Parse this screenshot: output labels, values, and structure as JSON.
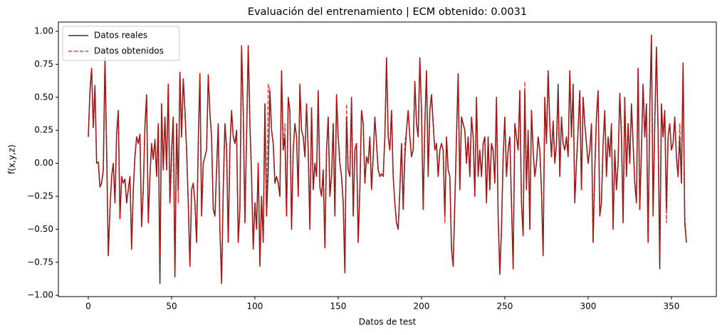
{
  "chart_data": {
    "type": "line",
    "title": "Evaluación del entrenamiento | ECM obtenido: 0.0031",
    "x_label": "Datos de test",
    "y_label": "f(x,y,z)",
    "legend_position": "upper left",
    "x": [
      0,
      1,
      2,
      3,
      4,
      5,
      6,
      7,
      8,
      9,
      10,
      11,
      12,
      13,
      14,
      15,
      16,
      17,
      18,
      19,
      20,
      21,
      22,
      23,
      24,
      25,
      26,
      27,
      28,
      29,
      30,
      31,
      32,
      33,
      34,
      35,
      36,
      37,
      38,
      39,
      40,
      41,
      42,
      43,
      44,
      45,
      46,
      47,
      48,
      49,
      50,
      51,
      52,
      53,
      54,
      55,
      56,
      57,
      58,
      59,
      60,
      61,
      62,
      63,
      64,
      65,
      66,
      67,
      68,
      69,
      70,
      71,
      72,
      73,
      74,
      75,
      76,
      77,
      78,
      79,
      80,
      81,
      82,
      83,
      84,
      85,
      86,
      87,
      88,
      89,
      90,
      91,
      92,
      93,
      94,
      95,
      96,
      97,
      98,
      99,
      100,
      101,
      102,
      103,
      104,
      105,
      106,
      107,
      108,
      109,
      110,
      111,
      112,
      113,
      114,
      115,
      116,
      117,
      118,
      119,
      120,
      121,
      122,
      123,
      124,
      125,
      126,
      127,
      128,
      129,
      130,
      131,
      132,
      133,
      134,
      135,
      136,
      137,
      138,
      139,
      140,
      141,
      142,
      143,
      144,
      145,
      146,
      147,
      148,
      149,
      150,
      151,
      152,
      153,
      154,
      155,
      156,
      157,
      158,
      159,
      160,
      161,
      162,
      163,
      164,
      165,
      166,
      167,
      168,
      169,
      170,
      171,
      172,
      173,
      174,
      175,
      176,
      177,
      178,
      179,
      180,
      181,
      182,
      183,
      184,
      185,
      186,
      187,
      188,
      189,
      190,
      191,
      192,
      193,
      194,
      195,
      196,
      197,
      198,
      199,
      200,
      201,
      202,
      203,
      204,
      205,
      206,
      207,
      208,
      209,
      210,
      211,
      212,
      213,
      214,
      215,
      216,
      217,
      218,
      219,
      220,
      221,
      222,
      223,
      224,
      225,
      226,
      227,
      228,
      229,
      230,
      231,
      232,
      233,
      234,
      235,
      236,
      237,
      238,
      239,
      240,
      241,
      242,
      243,
      244,
      245,
      246,
      247,
      248,
      249,
      250,
      251,
      252,
      253,
      254,
      255,
      256,
      257,
      258,
      259,
      260,
      261,
      262,
      263,
      264,
      265,
      266,
      267,
      268,
      269,
      270,
      271,
      272,
      273,
      274,
      275,
      276,
      277,
      278,
      279,
      280,
      281,
      282,
      283,
      284,
      285,
      286,
      287,
      288,
      289,
      290,
      291,
      292,
      293,
      294,
      295,
      296,
      297,
      298,
      299,
      300,
      301,
      302,
      303,
      304,
      305,
      306,
      307,
      308,
      309,
      310,
      311,
      312,
      313,
      314,
      315,
      316,
      317,
      318,
      319,
      320,
      321,
      322,
      323,
      324,
      325,
      326,
      327,
      328,
      329,
      330,
      331,
      332,
      333,
      334,
      335,
      336,
      337,
      338,
      339,
      340,
      341,
      342,
      343,
      344,
      345,
      346,
      347,
      348,
      349,
      350,
      351,
      352,
      353,
      354,
      355,
      356,
      357,
      358,
      359
    ],
    "series": [
      {
        "name": "Datos reales",
        "color": "#333333",
        "dash": false,
        "values": [
          0.2,
          0.55,
          0.72,
          0.27,
          0.59,
          0.0,
          0.01,
          -0.18,
          -0.15,
          -0.05,
          0.8,
          0.1,
          -0.7,
          -0.35,
          -0.1,
          0.0,
          -0.3,
          0.22,
          0.4,
          -0.42,
          -0.1,
          -0.15,
          -0.12,
          -0.3,
          -0.2,
          -0.1,
          -0.65,
          -0.2,
          0.05,
          0.2,
          0.15,
          0.22,
          -0.48,
          -0.2,
          0.28,
          0.52,
          -0.45,
          -0.1,
          0.15,
          0.03,
          0.18,
          -0.1,
          0.3,
          -0.91,
          0.45,
          -0.05,
          0.35,
          -0.05,
          0.6,
          -0.3,
          0.1,
          0.35,
          -0.86,
          0.3,
          -0.2,
          0.69,
          0.2,
          0.64,
          0.4,
          0.1,
          -0.3,
          -0.78,
          -0.2,
          -0.15,
          -0.3,
          -0.6,
          0.15,
          0.68,
          -0.4,
          0.0,
          0.05,
          0.1,
          0.67,
          0.38,
          0.2,
          -0.35,
          -0.4,
          -0.05,
          0.3,
          -0.5,
          -0.91,
          -0.2,
          0.3,
          0.1,
          -0.6,
          0.12,
          0.4,
          0.2,
          0.15,
          0.25,
          -0.6,
          -0.35,
          0.89,
          0.4,
          -0.45,
          0.2,
          0.89,
          0.3,
          -0.1,
          -0.65,
          -0.3,
          -0.5,
          0.0,
          -0.78,
          -0.25,
          -0.6,
          0.45,
          -0.4,
          -0.05,
          0.55,
          0.25,
          0.15,
          -0.15,
          -0.1,
          -0.15,
          -0.25,
          0.7,
          0.1,
          0.2,
          -0.4,
          0.5,
          0.4,
          -0.5,
          0.1,
          0.3,
          0.2,
          -0.25,
          0.6,
          0.25,
          0.2,
          0.05,
          0.45,
          0.1,
          -0.5,
          0.42,
          -0.2,
          0.0,
          -0.1,
          0.55,
          -0.18,
          -0.25,
          -0.05,
          -0.64,
          0.1,
          0.35,
          -0.25,
          -0.1,
          0.3,
          -0.4,
          0.52,
          0.2,
          0.0,
          -0.1,
          -0.3,
          -0.83,
          0.35,
          -0.05,
          -0.1,
          0.5,
          -0.4,
          0.1,
          0.15,
          -0.6,
          -0.2,
          0.4,
          0.3,
          -0.15,
          0.05,
          0.0,
          0.2,
          -0.2,
          0.05,
          0.35,
          0.15,
          -0.05,
          -0.1,
          -0.08,
          -0.1,
          0.2,
          0.8,
          0.2,
          0.1,
          0.4,
          -0.1,
          -0.3,
          -0.45,
          -0.5,
          -0.2,
          0.15,
          -0.35,
          0.05,
          0.25,
          0.4,
          0.2,
          0.05,
          0.1,
          0.62,
          0.3,
          0.2,
          0.8,
          0.4,
          -0.35,
          0.3,
          0.7,
          -0.1,
          0.4,
          0.52,
          0.3,
          0.1,
          0.15,
          -0.1,
          0.1,
          0.15,
          0.1,
          -0.4,
          0.2,
          -0.05,
          -0.1,
          -0.65,
          -0.78,
          -0.3,
          0.2,
          0.68,
          -0.2,
          0.35,
          0.3,
          0.25,
          0.0,
          0.2,
          -0.1,
          0.35,
          0.2,
          -0.25,
          0.5,
          -0.1,
          0.1,
          -0.1,
          0.15,
          0.2,
          -0.3,
          0.2,
          -0.2,
          0.15,
          0.1,
          -0.15,
          0.5,
          -0.4,
          -0.84,
          -0.5,
          0.05,
          0.35,
          -0.1,
          0.1,
          0.2,
          -0.3,
          -0.8,
          0.3,
          0.2,
          0.1,
          0.55,
          -0.3,
          -0.55,
          0.55,
          -0.2,
          0.25,
          -0.5,
          0.4,
          0.1,
          -0.1,
          0.0,
          0.2,
          0.1,
          -0.2,
          -0.7,
          0.5,
          0.15,
          0.7,
          0.3,
          0.05,
          0.32,
          0.0,
          0.15,
          0.6,
          -0.1,
          0.35,
          0.15,
          0.1,
          0.2,
          0.05,
          0.7,
          0.2,
          0.6,
          -0.3,
          0.0,
          0.25,
          0.55,
          -0.2,
          0.5,
          0.3,
          0.15,
          0.0,
          0.1,
          0.3,
          -0.6,
          -0.05,
          0.35,
          0.55,
          -0.4,
          -0.3,
          0.15,
          0.4,
          -0.1,
          0.2,
          0.05,
          0.3,
          -0.5,
          0.1,
          -0.2,
          0.0,
          0.53,
          0.2,
          -0.45,
          0.5,
          -0.1,
          0.3,
          0.0,
          0.45,
          0.15,
          -0.15,
          -0.3,
          0.72,
          -0.35,
          0.1,
          0.6,
          0.2,
          0.45,
          -0.6,
          0.4,
          0.97,
          -0.4,
          0.3,
          0.88,
          0.25,
          -0.8,
          0.45,
          0.2,
          0.4,
          -0.35,
          0.2,
          0.3,
          0.1,
          0.15,
          0.35,
          0.05,
          -0.1,
          0.2,
          -0.15,
          0.76,
          -0.45,
          -0.6
        ]
      },
      {
        "name": "Datos obtenidos",
        "color": "#ff0000",
        "dash": true,
        "values": [
          0.2,
          0.55,
          0.72,
          0.27,
          0.59,
          0.0,
          0.01,
          -0.18,
          -0.15,
          -0.05,
          0.8,
          0.1,
          -0.7,
          -0.35,
          -0.1,
          0.0,
          -0.3,
          0.22,
          0.4,
          -0.42,
          -0.1,
          -0.15,
          -0.12,
          -0.3,
          -0.2,
          -0.1,
          -0.65,
          -0.2,
          0.05,
          0.2,
          0.15,
          0.22,
          -0.48,
          -0.2,
          0.28,
          0.52,
          -0.45,
          -0.1,
          0.15,
          0.03,
          0.18,
          -0.1,
          0.3,
          -0.7,
          0.45,
          -0.05,
          0.35,
          -0.05,
          0.6,
          -0.3,
          0.0,
          0.35,
          -0.86,
          0.3,
          -0.3,
          0.69,
          0.2,
          0.64,
          0.4,
          0.1,
          -0.3,
          -0.78,
          -0.2,
          -0.15,
          -0.3,
          -0.6,
          0.15,
          0.68,
          -0.4,
          0.0,
          0.05,
          0.1,
          0.67,
          0.38,
          0.2,
          -0.35,
          -0.4,
          -0.05,
          0.3,
          -0.5,
          -0.91,
          -0.2,
          0.3,
          0.15,
          -0.6,
          0.12,
          0.4,
          0.2,
          0.15,
          0.25,
          -0.6,
          -0.35,
          0.89,
          0.4,
          -0.45,
          0.2,
          0.89,
          0.3,
          -0.1,
          -0.65,
          -0.3,
          -0.5,
          0.0,
          -0.78,
          -0.25,
          -0.6,
          0.45,
          -0.4,
          0.6,
          0.55,
          0.25,
          0.15,
          -0.15,
          -0.1,
          -0.15,
          -0.25,
          0.7,
          0.1,
          0.3,
          -0.4,
          0.5,
          0.4,
          -0.5,
          0.1,
          0.3,
          0.2,
          -0.25,
          0.6,
          0.25,
          0.2,
          0.05,
          0.45,
          0.1,
          -0.5,
          0.42,
          -0.2,
          0.0,
          -0.1,
          0.55,
          -0.18,
          -0.25,
          -0.05,
          -0.64,
          0.1,
          0.35,
          -0.25,
          -0.1,
          0.3,
          -0.4,
          0.52,
          0.2,
          0.0,
          -0.1,
          -0.3,
          -0.83,
          0.45,
          -0.05,
          -0.1,
          0.5,
          -0.4,
          0.1,
          0.15,
          -0.6,
          -0.2,
          0.4,
          0.3,
          -0.15,
          0.05,
          0.0,
          0.2,
          -0.2,
          0.05,
          0.35,
          0.15,
          -0.05,
          -0.1,
          -0.08,
          -0.1,
          0.2,
          0.8,
          0.2,
          0.1,
          0.4,
          -0.1,
          -0.3,
          -0.45,
          -0.5,
          -0.2,
          0.15,
          -0.35,
          0.15,
          0.25,
          0.4,
          0.2,
          0.05,
          0.1,
          0.62,
          0.3,
          0.2,
          0.8,
          0.4,
          -0.35,
          0.3,
          0.7,
          -0.1,
          0.4,
          0.52,
          0.3,
          0.1,
          0.15,
          -0.1,
          0.1,
          0.15,
          0.1,
          -0.45,
          0.2,
          -0.05,
          -0.1,
          -0.65,
          -0.78,
          -0.3,
          0.2,
          0.68,
          -0.2,
          0.35,
          0.3,
          0.25,
          0.0,
          0.2,
          -0.1,
          0.35,
          0.2,
          -0.25,
          0.5,
          -0.1,
          0.1,
          -0.1,
          0.15,
          0.2,
          -0.3,
          0.2,
          -0.2,
          0.15,
          0.08,
          -0.15,
          0.5,
          -0.4,
          -0.84,
          -0.5,
          0.05,
          0.35,
          -0.1,
          0.1,
          0.2,
          -0.3,
          -0.8,
          0.3,
          0.2,
          0.1,
          0.55,
          -0.3,
          -0.55,
          0.62,
          -0.2,
          0.25,
          -0.5,
          0.4,
          0.1,
          -0.1,
          0.0,
          0.2,
          0.1,
          -0.2,
          -0.7,
          0.5,
          0.15,
          0.7,
          0.3,
          0.05,
          0.32,
          0.0,
          0.15,
          0.5,
          -0.1,
          0.35,
          0.15,
          0.1,
          0.2,
          0.05,
          0.7,
          0.2,
          0.6,
          -0.3,
          0.0,
          0.25,
          0.55,
          -0.2,
          0.5,
          0.3,
          0.15,
          0.0,
          0.1,
          0.3,
          -0.6,
          -0.05,
          0.35,
          0.55,
          -0.4,
          -0.3,
          0.15,
          0.4,
          -0.1,
          0.2,
          0.05,
          0.3,
          -0.5,
          0.1,
          -0.2,
          0.0,
          0.53,
          0.25,
          -0.45,
          0.5,
          -0.1,
          0.3,
          0.0,
          0.45,
          0.15,
          -0.15,
          -0.3,
          0.72,
          -0.35,
          0.1,
          0.6,
          0.2,
          0.38,
          -0.6,
          0.4,
          0.97,
          -0.4,
          0.3,
          0.88,
          0.25,
          -0.7,
          0.45,
          0.2,
          0.4,
          -0.45,
          0.2,
          0.3,
          0.1,
          0.15,
          0.35,
          0.05,
          -0.1,
          0.3,
          -0.15,
          0.76,
          -0.4,
          -0.6
        ]
      }
    ],
    "xlim": [
      -17.95,
      376.95
    ],
    "ylim": [
      -1.01,
      1.07
    ],
    "xticks": [
      0,
      50,
      100,
      150,
      200,
      250,
      300,
      350
    ],
    "yticks": [
      {
        "value": -1,
        "label": "−1.00"
      },
      {
        "value": -0.75,
        "label": "−0.75"
      },
      {
        "value": -0.5,
        "label": "−0.50"
      },
      {
        "value": -0.25,
        "label": "−0.25"
      },
      {
        "value": 0,
        "label": "0.00"
      },
      {
        "value": 0.25,
        "label": "0.25"
      },
      {
        "value": 0.5,
        "label": "0.50"
      },
      {
        "value": 0.75,
        "label": "0.75"
      },
      {
        "value": 1,
        "label": "1.00"
      }
    ]
  }
}
